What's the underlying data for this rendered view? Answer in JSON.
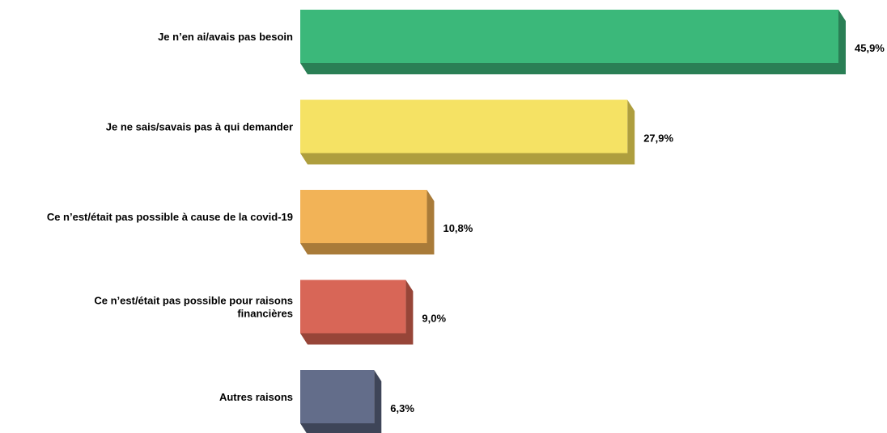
{
  "chart_data": {
    "type": "bar",
    "orientation": "horizontal",
    "style": "3d",
    "title": "",
    "xlabel": "",
    "ylabel": "",
    "grid": false,
    "legend": "none",
    "xlim": [
      0,
      45.9
    ],
    "categories": [
      [
        "Je n’en ai/avais pas besoin"
      ],
      [
        "Je ne sais/savais pas à qui demander"
      ],
      [
        "Ce n’est/était pas possible à cause de la covid-19"
      ],
      [
        "Ce n’est/était pas possible pour raisons",
        "financières"
      ],
      [
        "Autres raisons"
      ]
    ],
    "values": [
      45.9,
      27.9,
      10.8,
      9.0,
      6.3
    ],
    "value_labels": [
      "45,9%",
      "27,9%",
      "10,8%",
      "9,0%",
      "6,3%"
    ],
    "colors": [
      {
        "face": "#3bb87a",
        "shadow": "#2a7f55"
      },
      {
        "face": "#f5e264",
        "shadow": "#ae9e3e"
      },
      {
        "face": "#f2b357",
        "shadow": "#a97b39"
      },
      {
        "face": "#d86657",
        "shadow": "#974538"
      },
      {
        "face": "#636d8a",
        "shadow": "#3e4558"
      }
    ]
  }
}
